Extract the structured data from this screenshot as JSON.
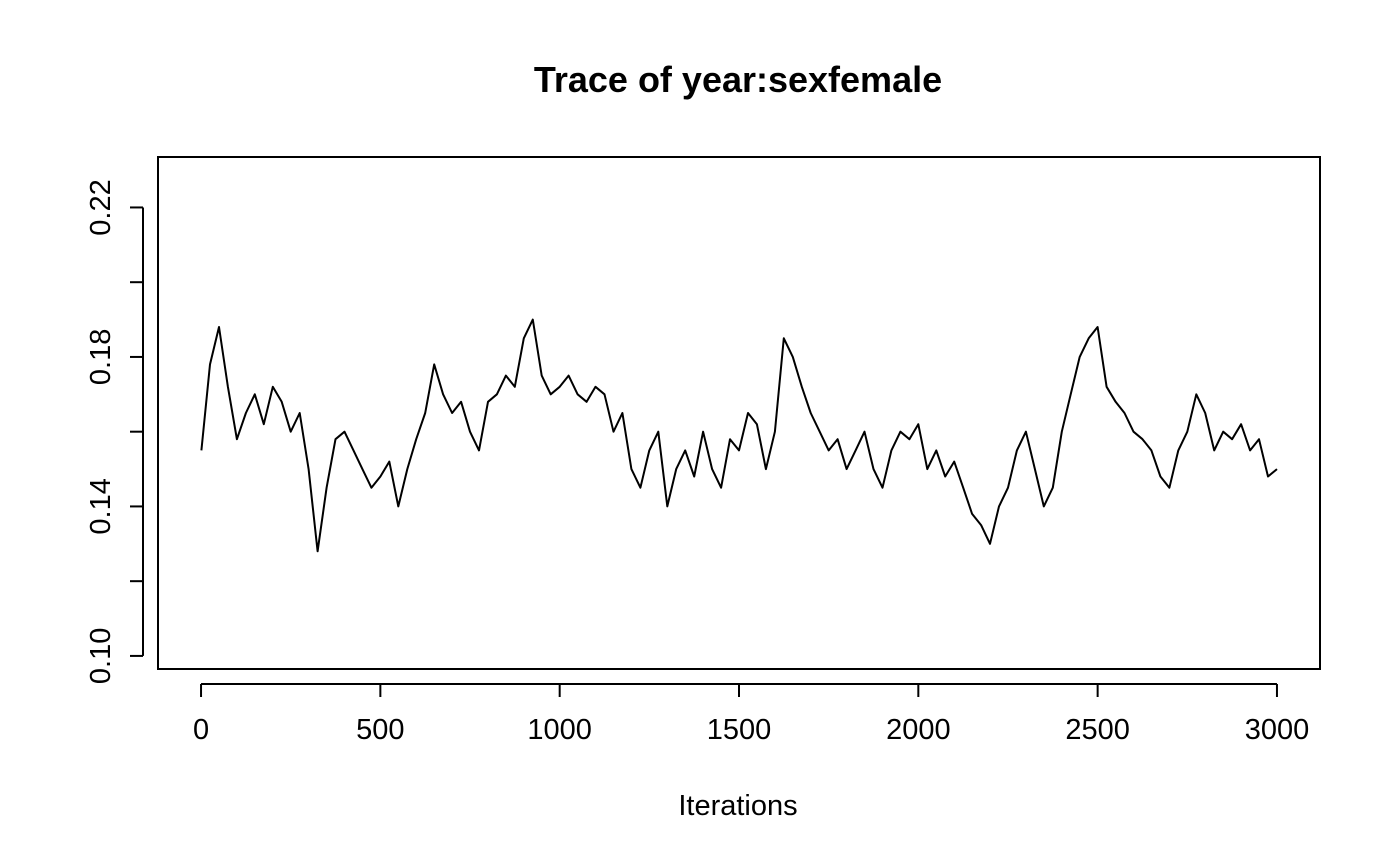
{
  "chart_data": {
    "type": "line",
    "title": "Trace of year:sexfemale",
    "xlabel": "Iterations",
    "ylabel": "",
    "xlim": [
      -120,
      3120
    ],
    "ylim": [
      0.0965,
      0.2335
    ],
    "x_ticks": [
      0,
      500,
      1000,
      1500,
      2000,
      2500,
      3000
    ],
    "x_tick_labels": [
      "0",
      "500",
      "1000",
      "1500",
      "2000",
      "2500",
      "3000"
    ],
    "y_ticks": [
      0.1,
      0.12,
      0.14,
      0.16,
      0.18,
      0.2,
      0.22
    ],
    "y_tick_labels": [
      "0.10",
      "",
      "0.14",
      "",
      "0.18",
      "",
      "0.22"
    ],
    "grid": false,
    "legend": "none",
    "series": [
      {
        "color": "#000000",
        "x": [
          1,
          25,
          50,
          75,
          100,
          125,
          150,
          175,
          200,
          225,
          250,
          275,
          300,
          325,
          350,
          375,
          400,
          425,
          450,
          475,
          500,
          525,
          550,
          575,
          600,
          625,
          650,
          675,
          700,
          725,
          750,
          775,
          800,
          825,
          850,
          875,
          900,
          925,
          950,
          975,
          1000,
          1025,
          1050,
          1075,
          1100,
          1125,
          1150,
          1175,
          1200,
          1225,
          1250,
          1275,
          1300,
          1325,
          1350,
          1375,
          1400,
          1425,
          1450,
          1475,
          1500,
          1525,
          1550,
          1575,
          1600,
          1625,
          1650,
          1675,
          1700,
          1725,
          1750,
          1775,
          1800,
          1825,
          1850,
          1875,
          1900,
          1925,
          1950,
          1975,
          2000,
          2025,
          2050,
          2075,
          2100,
          2125,
          2150,
          2175,
          2200,
          2225,
          2250,
          2275,
          2300,
          2325,
          2350,
          2375,
          2400,
          2425,
          2450,
          2475,
          2500,
          2525,
          2550,
          2575,
          2600,
          2625,
          2650,
          2675,
          2700,
          2725,
          2750,
          2775,
          2800,
          2825,
          2850,
          2875,
          2900,
          2925,
          2950,
          2975,
          3000
        ],
        "y": [
          0.155,
          0.178,
          0.188,
          0.172,
          0.158,
          0.165,
          0.17,
          0.162,
          0.172,
          0.168,
          0.16,
          0.165,
          0.15,
          0.128,
          0.145,
          0.158,
          0.16,
          0.155,
          0.15,
          0.145,
          0.148,
          0.152,
          0.14,
          0.15,
          0.158,
          0.165,
          0.178,
          0.17,
          0.165,
          0.168,
          0.16,
          0.155,
          0.168,
          0.17,
          0.175,
          0.172,
          0.185,
          0.19,
          0.175,
          0.17,
          0.172,
          0.175,
          0.17,
          0.168,
          0.172,
          0.17,
          0.16,
          0.165,
          0.15,
          0.145,
          0.155,
          0.16,
          0.14,
          0.15,
          0.155,
          0.148,
          0.16,
          0.15,
          0.145,
          0.158,
          0.155,
          0.165,
          0.162,
          0.15,
          0.16,
          0.185,
          0.18,
          0.172,
          0.165,
          0.16,
          0.155,
          0.158,
          0.15,
          0.155,
          0.16,
          0.15,
          0.145,
          0.155,
          0.16,
          0.158,
          0.162,
          0.15,
          0.155,
          0.148,
          0.152,
          0.145,
          0.138,
          0.135,
          0.13,
          0.14,
          0.145,
          0.155,
          0.16,
          0.15,
          0.14,
          0.145,
          0.16,
          0.17,
          0.18,
          0.185,
          0.188,
          0.172,
          0.168,
          0.165,
          0.16,
          0.158,
          0.155,
          0.148,
          0.145,
          0.155,
          0.16,
          0.17,
          0.165,
          0.155,
          0.16,
          0.158,
          0.162,
          0.155,
          0.158,
          0.148,
          0.15
        ]
      }
    ]
  }
}
